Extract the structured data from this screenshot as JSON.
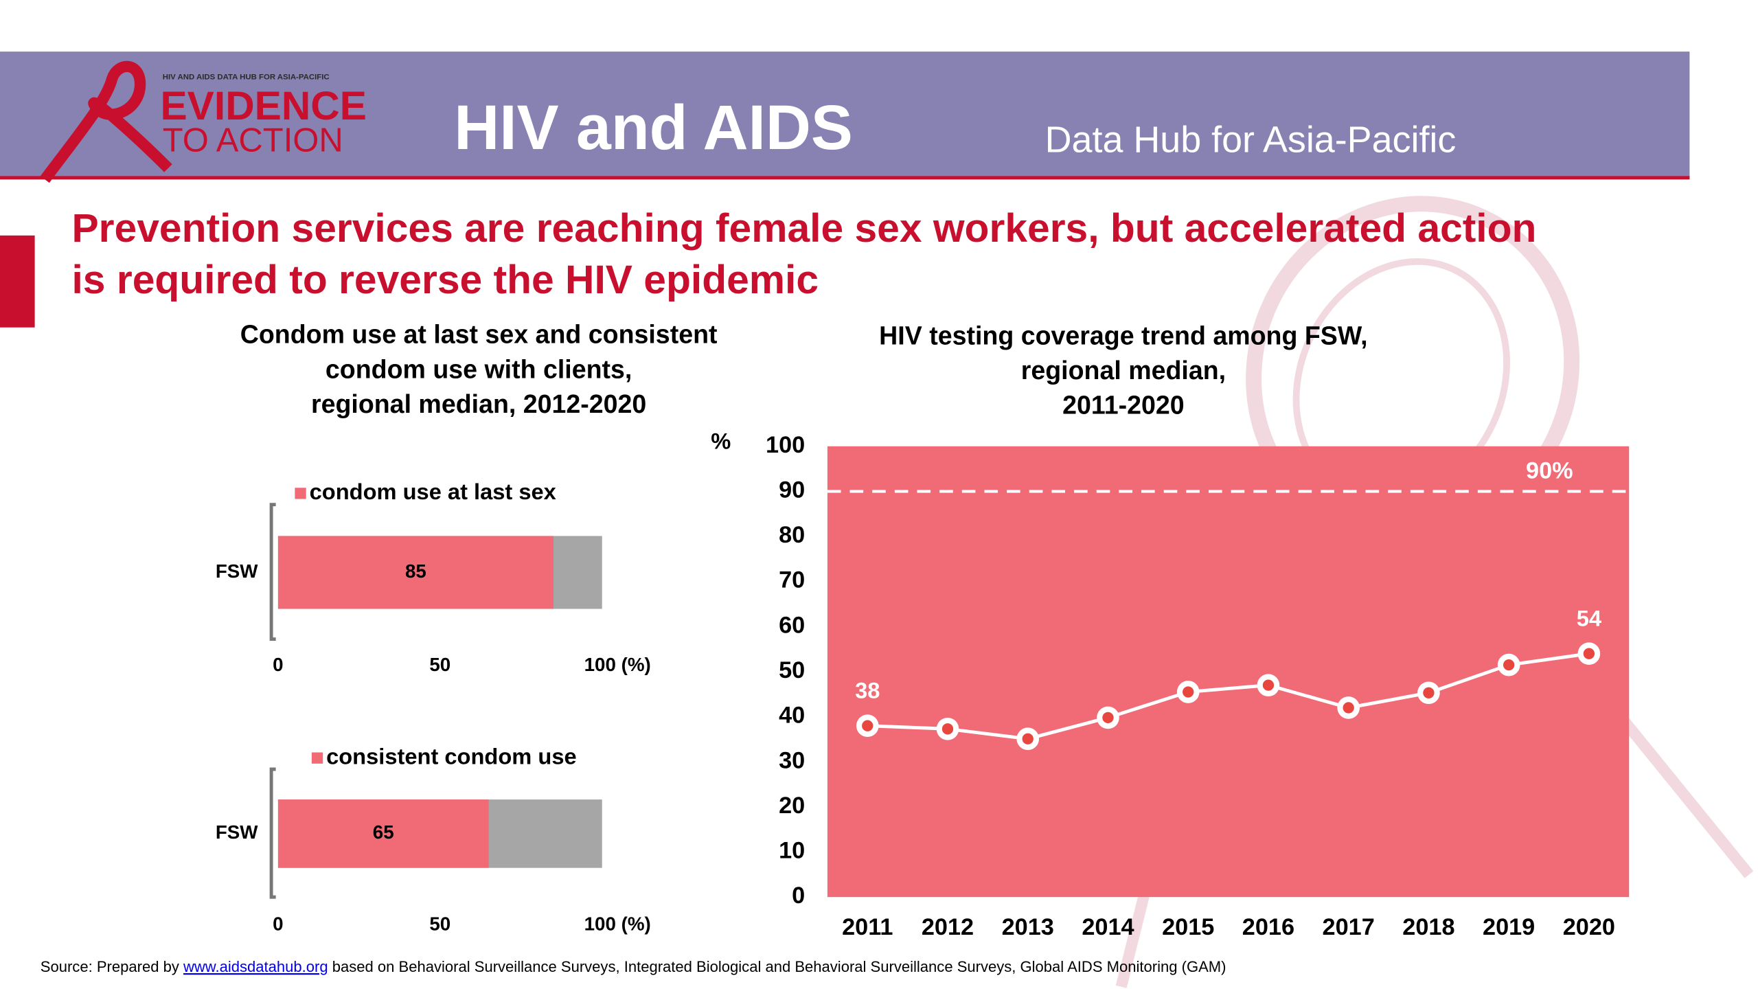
{
  "header": {
    "logo_small": "HIV AND AIDS DATA HUB FOR ASIA-PACIFIC",
    "logo_top": "EVIDENCE",
    "logo_bottom": "TO ACTION",
    "title": "HIV and AIDS",
    "subtitle": "Data Hub for Asia-Pacific"
  },
  "headline": [
    "Prevention services are reaching female sex workers, but accelerated action",
    "is required to reverse the HIV epidemic"
  ],
  "left_panel": {
    "title": [
      "Condom use at last sex and consistent",
      "condom use with clients,",
      "regional median, 2012-2020"
    ]
  },
  "chart_data": [
    {
      "type": "hbar",
      "categories": [
        "FSW"
      ],
      "series": [
        {
          "name": "condom use at last sex",
          "color": "#f06b76",
          "values": [
            85
          ]
        }
      ],
      "remainder_color": "#a6a6a6",
      "xlim": [
        0,
        100
      ],
      "xticks": [
        0,
        50,
        {
          "value": 100,
          "label": "100 (%)"
        }
      ]
    },
    {
      "type": "hbar",
      "categories": [
        "FSW"
      ],
      "series": [
        {
          "name": "consistent condom use",
          "color": "#f06b76",
          "values": [
            65
          ]
        }
      ],
      "remainder_color": "#a6a6a6",
      "xlim": [
        0,
        100
      ],
      "xticks": [
        0,
        50,
        {
          "value": 100,
          "label": "100 (%)"
        }
      ]
    },
    {
      "type": "line",
      "title": [
        "HIV testing coverage trend among FSW,",
        "regional median,",
        "2011-2020"
      ],
      "y_label": "%",
      "categories": [
        "2011",
        "2012",
        "2013",
        "2014",
        "2015",
        "2016",
        "2017",
        "2018",
        "2019",
        "2020"
      ],
      "series": [
        {
          "name": "HIV testing coverage",
          "color": "#ffffff",
          "values": [
            38,
            37.3,
            35.1,
            39.8,
            45.5,
            47,
            42,
            45.3,
            51.5,
            54
          ]
        }
      ],
      "plot_color": "#f06b76",
      "ylim": [
        0,
        100
      ],
      "yticks": [
        0,
        10,
        20,
        30,
        40,
        50,
        60,
        70,
        80,
        90,
        100
      ],
      "reference_line": {
        "value": 90,
        "label": "90%"
      }
    }
  ],
  "source": {
    "prefix": "Source: Prepared by",
    "link": "www.aidsdatahub.org",
    "suffix": "based on Behavioral Surveillance Surveys, Integrated Biological and Behavioral Surveillance Surveys, Global AIDS Monitoring (GAM)"
  }
}
